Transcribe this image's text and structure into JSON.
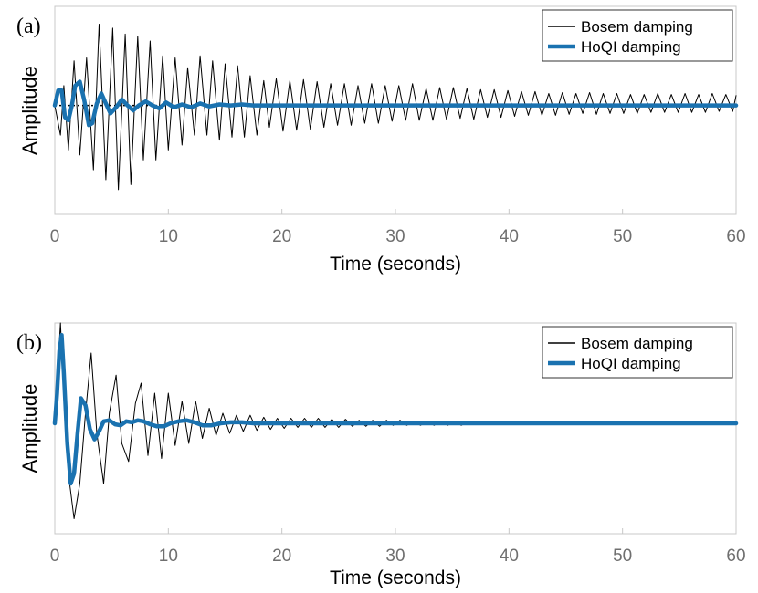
{
  "chart_data": [
    {
      "panel_label": "(a)",
      "type": "line",
      "xlabel": "Time (seconds)",
      "ylabel": "Amplitude",
      "xlim": [
        0,
        60
      ],
      "ylim": [
        -1.1,
        1.0
      ],
      "xticks": [
        "0",
        "10",
        "20",
        "30",
        "40",
        "50",
        "60"
      ],
      "grid": false,
      "legend_position": "top-right",
      "series": [
        {
          "name": "Bosem damping",
          "color": "#000000",
          "style": "thin",
          "x": [
            0,
            0.5,
            0.8,
            1.2,
            1.7,
            2.2,
            2.8,
            3.4,
            3.9,
            4.5,
            5.1,
            5.6,
            6.2,
            6.7,
            7.3,
            7.8,
            8.4,
            8.9,
            9.5,
            10.0,
            10.6,
            11.2,
            11.7,
            12.3,
            12.8,
            13.4,
            13.9,
            14.5,
            15.0,
            15.6,
            16.1,
            16.7,
            17.2,
            17.8,
            18.4,
            18.9,
            19.5,
            20.1,
            20.7,
            21.3,
            21.9,
            22.5,
            23.1,
            23.7,
            24.3,
            24.9,
            25.5,
            26.1,
            26.7,
            27.3,
            27.9,
            28.5,
            29.1,
            29.7,
            30.3,
            30.9,
            31.5,
            32.1,
            32.7,
            33.3,
            33.9,
            34.5,
            35.1,
            35.7,
            36.3,
            36.9,
            37.5,
            38.1,
            38.7,
            39.3,
            39.9,
            40.5,
            41.1,
            41.7,
            42.3,
            42.9,
            43.5,
            44.1,
            44.7,
            45.3,
            45.9,
            46.5,
            47.1,
            47.7,
            48.3,
            48.9,
            49.5,
            50.1,
            50.7,
            51.3,
            51.9,
            52.5,
            53.1,
            53.7,
            54.3,
            54.9,
            55.5,
            56.1,
            56.7,
            57.3,
            57.9,
            58.5,
            59.1,
            59.7,
            60
          ],
          "y": [
            0,
            -0.3,
            0.2,
            -0.45,
            0.45,
            -0.5,
            0.48,
            -0.65,
            0.82,
            -0.75,
            0.78,
            -0.85,
            0.72,
            -0.8,
            0.7,
            -0.55,
            0.65,
            -0.55,
            0.5,
            -0.45,
            0.48,
            -0.4,
            0.38,
            -0.3,
            0.5,
            -0.3,
            0.45,
            -0.35,
            0.42,
            -0.32,
            0.4,
            -0.32,
            0.3,
            -0.3,
            0.25,
            -0.22,
            0.27,
            -0.26,
            0.25,
            -0.25,
            0.26,
            -0.24,
            0.24,
            -0.22,
            0.22,
            -0.2,
            0.22,
            -0.2,
            0.2,
            -0.18,
            0.22,
            -0.18,
            0.2,
            -0.16,
            0.2,
            -0.15,
            0.22,
            -0.15,
            0.17,
            -0.15,
            0.18,
            -0.14,
            0.18,
            -0.13,
            0.17,
            -0.14,
            0.16,
            -0.12,
            0.16,
            -0.12,
            0.15,
            -0.11,
            0.14,
            -0.1,
            0.14,
            -0.1,
            0.12,
            -0.1,
            0.13,
            -0.09,
            0.12,
            -0.08,
            0.13,
            -0.09,
            0.12,
            -0.08,
            0.12,
            -0.08,
            0.11,
            -0.08,
            0.11,
            -0.07,
            0.12,
            -0.07,
            0.11,
            -0.07,
            0.12,
            -0.07,
            0.11,
            -0.07,
            0.12,
            -0.06,
            0.11,
            -0.06,
            0.1
          ]
        },
        {
          "name": "HoQI damping",
          "color": "#1a72b0",
          "style": "thick",
          "x": [
            0,
            0.3,
            0.6,
            0.9,
            1.2,
            1.5,
            1.8,
            2.2,
            2.6,
            3.0,
            3.3,
            3.7,
            4.1,
            4.5,
            4.9,
            5.4,
            5.9,
            6.4,
            6.9,
            7.4,
            8.0,
            8.6,
            9.2,
            9.8,
            10.5,
            11.2,
            12.0,
            12.8,
            13.6,
            14.5,
            15.5,
            16.5,
            17.5,
            18.5,
            20,
            25,
            30,
            35,
            40,
            45,
            50,
            55,
            60
          ],
          "y": [
            0,
            0.15,
            0.15,
            -0.12,
            -0.15,
            0.0,
            0.2,
            0.24,
            0.05,
            -0.2,
            -0.18,
            0.02,
            0.12,
            0.02,
            -0.08,
            -0.02,
            0.06,
            0.0,
            -0.05,
            0.0,
            0.04,
            0.0,
            -0.03,
            0.03,
            -0.02,
            0.01,
            -0.02,
            0.02,
            -0.01,
            0.01,
            0.0,
            0.01,
            0.0,
            0.0,
            0,
            0,
            0,
            0,
            0,
            0,
            0,
            0,
            0
          ]
        }
      ]
    },
    {
      "panel_label": "(b)",
      "type": "line",
      "xlabel": "Time (seconds)",
      "ylabel": "Amplitude",
      "xlim": [
        0,
        60
      ],
      "ylim": [
        -1.1,
        1.0
      ],
      "xticks": [
        "0",
        "10",
        "20",
        "30",
        "40",
        "50",
        "60"
      ],
      "grid": false,
      "legend_position": "top-right",
      "series": [
        {
          "name": "Bosem damping",
          "color": "#000000",
          "style": "thin",
          "x": [
            0,
            0.3,
            0.5,
            0.8,
            1.2,
            1.7,
            2.2,
            2.7,
            3.2,
            3.7,
            4.3,
            4.8,
            5.4,
            5.9,
            6.5,
            7.1,
            7.6,
            8.2,
            8.8,
            9.4,
            10.0,
            10.6,
            11.2,
            11.8,
            12.4,
            13.0,
            13.6,
            14.2,
            14.8,
            15.4,
            16.0,
            16.6,
            17.2,
            17.8,
            18.4,
            19.0,
            19.6,
            20.2,
            20.8,
            21.4,
            22.0,
            22.6,
            23.2,
            23.8,
            24.4,
            25.0,
            25.6,
            26.2,
            26.8,
            27.4,
            28.0,
            28.6,
            29.2,
            29.8,
            30.4,
            31.0,
            31.6,
            32.2,
            32.8,
            33.4,
            34.0,
            34.6,
            35.2,
            35.8,
            36.4,
            37.0,
            37.6,
            38.2,
            38.8,
            39.4,
            40.0,
            40.6,
            41.2,
            41.8,
            42.4,
            43.0,
            43.6,
            44.2,
            44.8,
            45.4,
            46.0,
            46.6,
            47.2,
            47.8,
            48.4,
            49.0,
            49.6,
            50.2,
            50.8,
            51.4,
            52.0,
            52.6,
            53.2,
            53.8,
            54.4,
            55.0,
            55.6,
            56.2,
            56.8,
            57.4,
            58.0,
            58.6,
            59.2,
            59.8,
            60
          ],
          "y": [
            0,
            0.6,
            1.0,
            0.3,
            -0.5,
            -0.95,
            -0.6,
            0.1,
            0.7,
            -0.1,
            -0.6,
            0.1,
            0.48,
            -0.2,
            -0.38,
            0.2,
            0.4,
            -0.32,
            0.3,
            -0.35,
            0.3,
            -0.22,
            0.22,
            -0.2,
            0.22,
            -0.15,
            0.15,
            -0.12,
            0.1,
            -0.1,
            0.08,
            -0.08,
            0.08,
            -0.07,
            0.06,
            -0.06,
            0.05,
            -0.05,
            0.05,
            -0.04,
            0.05,
            -0.04,
            0.05,
            -0.04,
            0.04,
            -0.04,
            0.04,
            -0.03,
            0.03,
            -0.03,
            0.03,
            -0.03,
            0.03,
            -0.02,
            0.03,
            -0.02,
            0.02,
            -0.02,
            0.02,
            -0.02,
            0.02,
            -0.02,
            0.02,
            -0.02,
            0.02,
            -0.01,
            0.02,
            -0.01,
            0.02,
            -0.01,
            0.02,
            -0.01,
            0.01,
            -0.01,
            0.01,
            -0.01,
            0.01,
            -0.01,
            0.01,
            -0.01,
            0.01,
            -0.01,
            0.01,
            -0.01,
            0.01,
            -0.01,
            0.01,
            -0.01,
            0.01,
            -0.01,
            0.01,
            0,
            0.01,
            0,
            0.01,
            0,
            0.01,
            0,
            0.01,
            0,
            0.01,
            0,
            0.01,
            0,
            0
          ]
        },
        {
          "name": "HoQI damping",
          "color": "#1a72b0",
          "style": "thick",
          "x": [
            0,
            0.2,
            0.4,
            0.6,
            0.8,
            1.1,
            1.4,
            1.7,
            2.0,
            2.3,
            2.7,
            3.1,
            3.5,
            3.9,
            4.3,
            4.8,
            5.3,
            5.8,
            6.3,
            6.8,
            7.3,
            7.8,
            8.4,
            9.0,
            9.6,
            10.2,
            10.9,
            11.6,
            12.3,
            13.0,
            13.8,
            14.6,
            15.5,
            16.5,
            17.5,
            18.5,
            20,
            25,
            30,
            35,
            40,
            45,
            50,
            55,
            60
          ],
          "y": [
            0,
            0.3,
            0.72,
            0.88,
            0.5,
            -0.2,
            -0.6,
            -0.5,
            -0.1,
            0.25,
            0.18,
            -0.06,
            -0.16,
            -0.08,
            0.02,
            0.03,
            -0.01,
            -0.02,
            0.02,
            0.01,
            0.03,
            0.02,
            -0.01,
            -0.03,
            -0.03,
            0.0,
            0.02,
            0.03,
            0.01,
            -0.02,
            -0.02,
            0.0,
            0.01,
            0.01,
            0.0,
            0.0,
            0,
            0,
            0,
            0,
            0,
            0,
            0,
            0,
            0
          ]
        }
      ]
    }
  ]
}
